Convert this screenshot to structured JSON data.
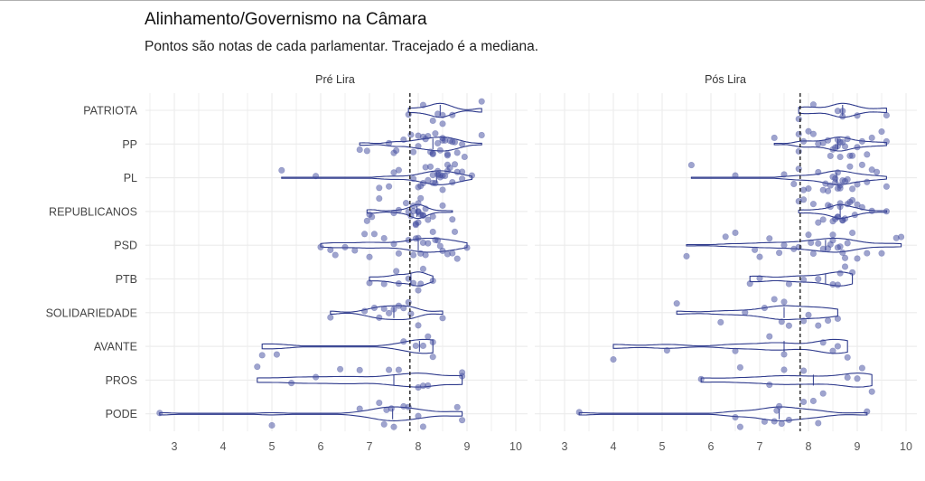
{
  "chart_data": {
    "type": "violin+jitter",
    "title": "Alinhamento/Governismo na Câmara",
    "subtitle": "Pontos são notas de cada parlamentar. Tracejado é a mediana.",
    "xlabel": "",
    "ylabel": "",
    "xlim": [
      2.5,
      10.2
    ],
    "x_ticks": [
      "3",
      "4",
      "5",
      "6",
      "7",
      "8",
      "9",
      "10"
    ],
    "grid": true,
    "median_line": 7.83,
    "categories": [
      "PATRIOTA",
      "PP",
      "PL",
      "REPUBLICANOS",
      "PSD",
      "PTB",
      "SOLIDARIEDADE",
      "AVANTE",
      "PROS",
      "PODE"
    ],
    "colors": {
      "violin": "#2e3a8c",
      "point": "#3f4a9e",
      "median": "#111111",
      "grid": "#ebebeb"
    },
    "panels": [
      {
        "name": "Pré Lira",
        "series": {
          "PATRIOTA": [
            7.8,
            8.1,
            8.4,
            8.5,
            8.5,
            8.7,
            9.3,
            8.3
          ],
          "PP": [
            6.8,
            7.5,
            7.55,
            7.7,
            7.9,
            8.0,
            8.0,
            8.1,
            8.2,
            8.25,
            8.3,
            8.3,
            8.35,
            8.4,
            8.45,
            8.5,
            8.5,
            8.55,
            8.6,
            8.6,
            8.7,
            8.75,
            8.8,
            9.3,
            7.85,
            8.15,
            8.65,
            8.9,
            8.95,
            7.4,
            6.95
          ],
          "PL": [
            5.2,
            5.9,
            7.2,
            7.4,
            7.5,
            7.9,
            8.0,
            8.1,
            8.15,
            8.2,
            8.25,
            8.3,
            8.3,
            8.35,
            8.4,
            8.4,
            8.45,
            8.5,
            8.5,
            8.55,
            8.6,
            8.6,
            8.65,
            8.7,
            8.75,
            8.8,
            8.9,
            9.1,
            7.6,
            8.05,
            8.45,
            8.9
          ],
          "REPUBLICANOS": [
            6.95,
            7.0,
            7.05,
            7.2,
            7.5,
            7.6,
            7.8,
            7.85,
            7.9,
            7.9,
            7.95,
            8.0,
            8.0,
            8.0,
            8.05,
            8.05,
            8.1,
            8.1,
            8.15,
            8.2,
            8.3,
            8.5,
            8.7,
            7.95,
            8.0,
            7.75
          ],
          "PSD": [
            6.0,
            6.2,
            6.3,
            6.5,
            6.7,
            6.9,
            7.0,
            7.1,
            7.3,
            7.5,
            7.6,
            7.8,
            7.9,
            8.0,
            8.05,
            8.1,
            8.2,
            8.3,
            8.4,
            8.5,
            8.6,
            8.7,
            8.8,
            9.0,
            8.15,
            8.35,
            8.75,
            7.95,
            8.45
          ],
          "PTB": [
            7.0,
            7.3,
            7.6,
            7.8,
            7.9,
            8.0,
            8.05,
            8.1,
            8.3,
            7.55
          ],
          "SOLIDARIEDADE": [
            6.2,
            6.9,
            7.1,
            7.2,
            7.3,
            7.5,
            7.6,
            7.7,
            7.8,
            7.85,
            8.0,
            8.5,
            7.4
          ],
          "AVANTE": [
            4.8,
            5.1,
            7.7,
            7.95,
            8.1,
            8.2,
            8.3,
            8.3
          ],
          "PROS": [
            4.7,
            5.4,
            5.9,
            6.4,
            6.8,
            7.4,
            7.6,
            8.0,
            8.1,
            8.2,
            8.9,
            8.9
          ],
          "PODE": [
            2.7,
            5.0,
            6.8,
            7.2,
            7.3,
            7.35,
            7.5,
            7.7,
            7.8,
            8.0,
            8.1,
            8.8,
            8.9,
            7.45
          ]
        }
      },
      {
        "name": "Pós Lira",
        "series": {
          "PATRIOTA": [
            7.8,
            8.1,
            8.6,
            8.7,
            8.7,
            9.0,
            9.6
          ],
          "PP": [
            7.3,
            7.8,
            7.8,
            8.0,
            8.1,
            8.2,
            8.3,
            8.4,
            8.5,
            8.55,
            8.6,
            8.6,
            8.65,
            8.7,
            8.75,
            8.8,
            8.85,
            8.9,
            9.0,
            9.1,
            9.2,
            9.3,
            9.5,
            9.6,
            7.9,
            8.45,
            8.65
          ],
          "PL": [
            5.6,
            6.5,
            7.5,
            7.8,
            8.0,
            8.2,
            8.3,
            8.35,
            8.4,
            8.45,
            8.5,
            8.55,
            8.6,
            8.6,
            8.65,
            8.7,
            8.75,
            8.8,
            8.85,
            8.9,
            9.0,
            9.1,
            9.2,
            9.4,
            9.6,
            7.7,
            7.9,
            8.55,
            8.65,
            9.3
          ],
          "REPUBLICANOS": [
            7.8,
            8.1,
            8.2,
            8.3,
            8.4,
            8.45,
            8.5,
            8.55,
            8.6,
            8.6,
            8.65,
            8.7,
            8.7,
            8.75,
            8.8,
            8.85,
            8.9,
            9.0,
            9.1,
            9.3,
            9.6,
            7.9,
            8.65,
            8.95
          ],
          "PSD": [
            5.5,
            6.3,
            6.5,
            7.2,
            7.4,
            7.5,
            7.7,
            7.8,
            8.0,
            8.1,
            8.2,
            8.3,
            8.4,
            8.5,
            8.5,
            8.6,
            8.65,
            8.7,
            8.8,
            8.9,
            9.0,
            9.2,
            9.5,
            9.8,
            9.9,
            6.9,
            7.0,
            8.05,
            8.45,
            8.75
          ],
          "PTB": [
            6.8,
            7.0,
            7.6,
            7.9,
            8.2,
            8.5,
            8.6,
            8.65,
            8.9,
            8.75
          ],
          "SOLIDARIEDADE": [
            5.3,
            6.2,
            6.7,
            7.1,
            7.3,
            7.5,
            7.6,
            7.9,
            8.0,
            8.2,
            8.4,
            8.6,
            7.45
          ],
          "AVANTE": [
            4.0,
            5.1,
            6.5,
            7.2,
            7.5,
            8.3,
            8.5,
            8.6,
            8.8
          ],
          "PROS": [
            5.8,
            6.6,
            7.2,
            7.5,
            7.9,
            8.3,
            8.8,
            9.0,
            9.1,
            9.3
          ],
          "PODE": [
            3.3,
            6.5,
            6.6,
            7.1,
            7.3,
            7.35,
            7.4,
            7.6,
            7.9,
            8.1,
            8.2,
            9.2,
            7.45
          ]
        }
      }
    ]
  }
}
